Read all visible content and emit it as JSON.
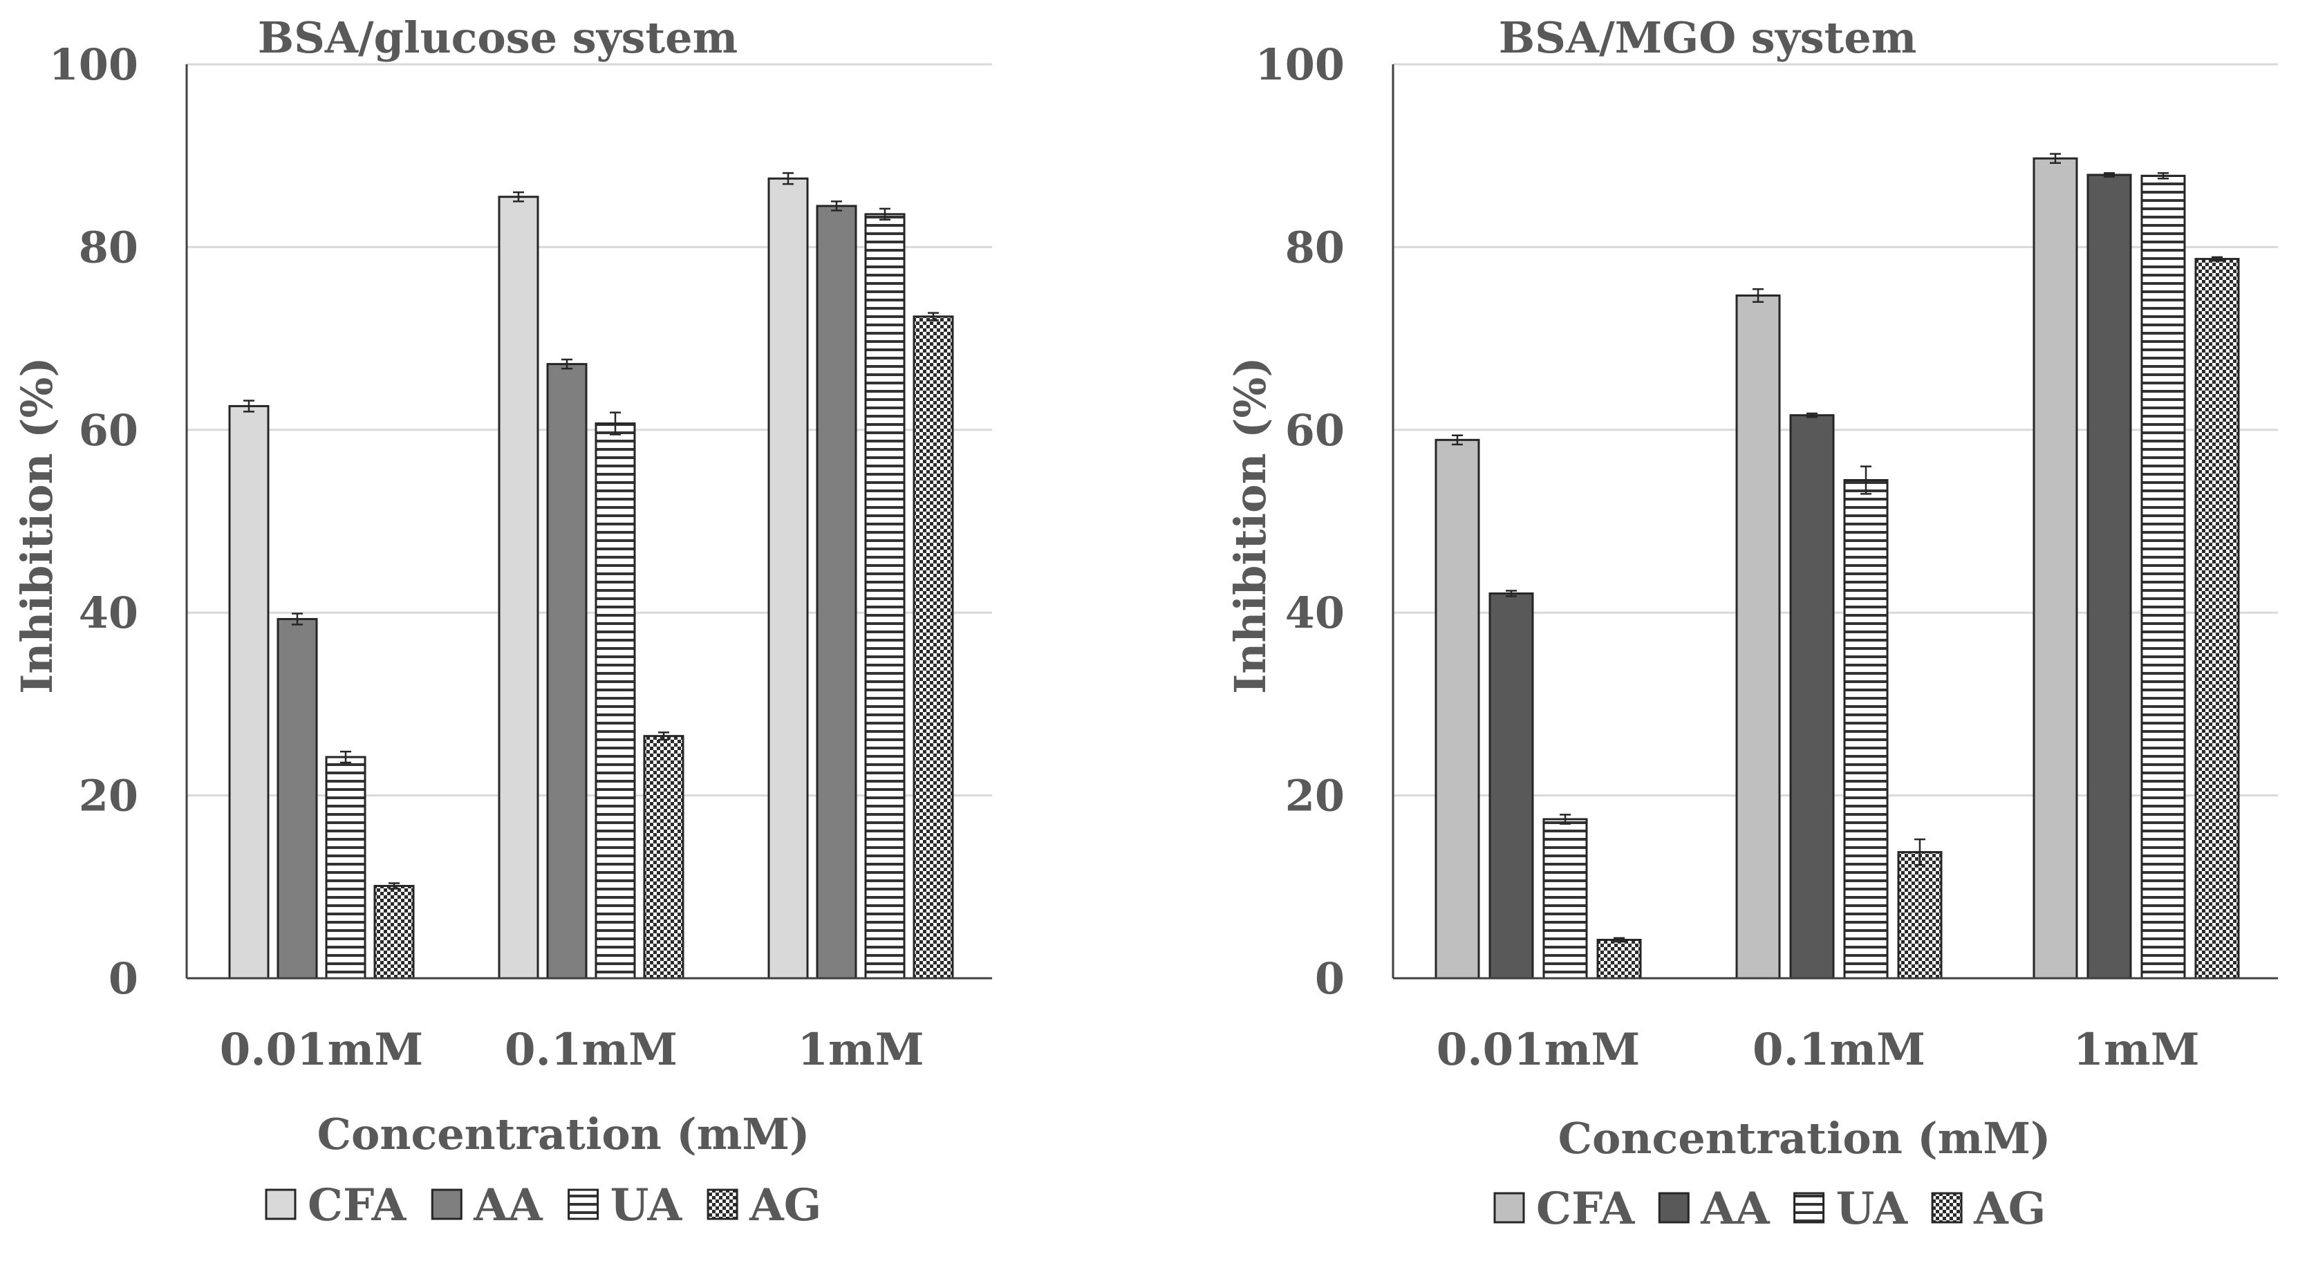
{
  "chart_data": [
    {
      "type": "bar",
      "title": "BSA/glucose system",
      "xlabel": "Concentration (mM)",
      "ylabel": "Inhibition (%)",
      "ylim": [
        0,
        100
      ],
      "yticks": [
        0,
        20,
        40,
        60,
        80,
        100
      ],
      "grid": true,
      "legend_position": "bottom",
      "categories": [
        "0.01mM",
        "0.1mM",
        "1mM"
      ],
      "series": [
        {
          "name": "CFA",
          "pattern": "solid",
          "color": "#d9d9d9",
          "values": [
            62.6,
            85.5,
            87.5
          ],
          "errors": [
            0.6,
            0.5,
            0.6
          ]
        },
        {
          "name": "AA",
          "pattern": "solid",
          "color": "#7f7f7f",
          "values": [
            39.3,
            67.2,
            84.5
          ],
          "errors": [
            0.6,
            0.5,
            0.5
          ]
        },
        {
          "name": "UA",
          "pattern": "hlines",
          "color": "#ffffff",
          "values": [
            24.2,
            60.7,
            83.6
          ],
          "errors": [
            0.6,
            1.2,
            0.6
          ]
        },
        {
          "name": "AG",
          "pattern": "checker",
          "color": "#ffffff",
          "values": [
            10.1,
            26.5,
            72.4
          ],
          "errors": [
            0.3,
            0.4,
            0.4
          ]
        }
      ]
    },
    {
      "type": "bar",
      "title": "BSA/MGO system",
      "xlabel": "Concentration (mM)",
      "ylabel": "Inhibition (%)",
      "ylim": [
        0,
        100
      ],
      "yticks": [
        0,
        20,
        40,
        60,
        80,
        100
      ],
      "grid": true,
      "legend_position": "bottom",
      "categories": [
        "0.01mM",
        "0.1mM",
        "1mM"
      ],
      "series": [
        {
          "name": "CFA",
          "pattern": "solid",
          "color": "#bfbfbf",
          "values": [
            58.9,
            74.7,
            89.7
          ],
          "errors": [
            0.5,
            0.7,
            0.5
          ]
        },
        {
          "name": "AA",
          "pattern": "solid",
          "color": "#595959",
          "values": [
            42.1,
            61.6,
            87.9
          ],
          "errors": [
            0.3,
            0.2,
            0.2
          ]
        },
        {
          "name": "UA",
          "pattern": "hlines",
          "color": "#ffffff",
          "values": [
            17.4,
            54.5,
            87.8
          ],
          "errors": [
            0.5,
            1.5,
            0.3
          ]
        },
        {
          "name": "AG",
          "pattern": "checker",
          "color": "#ffffff",
          "values": [
            4.2,
            13.8,
            78.7
          ],
          "errors": [
            0.2,
            1.4,
            0.2
          ]
        }
      ]
    }
  ]
}
